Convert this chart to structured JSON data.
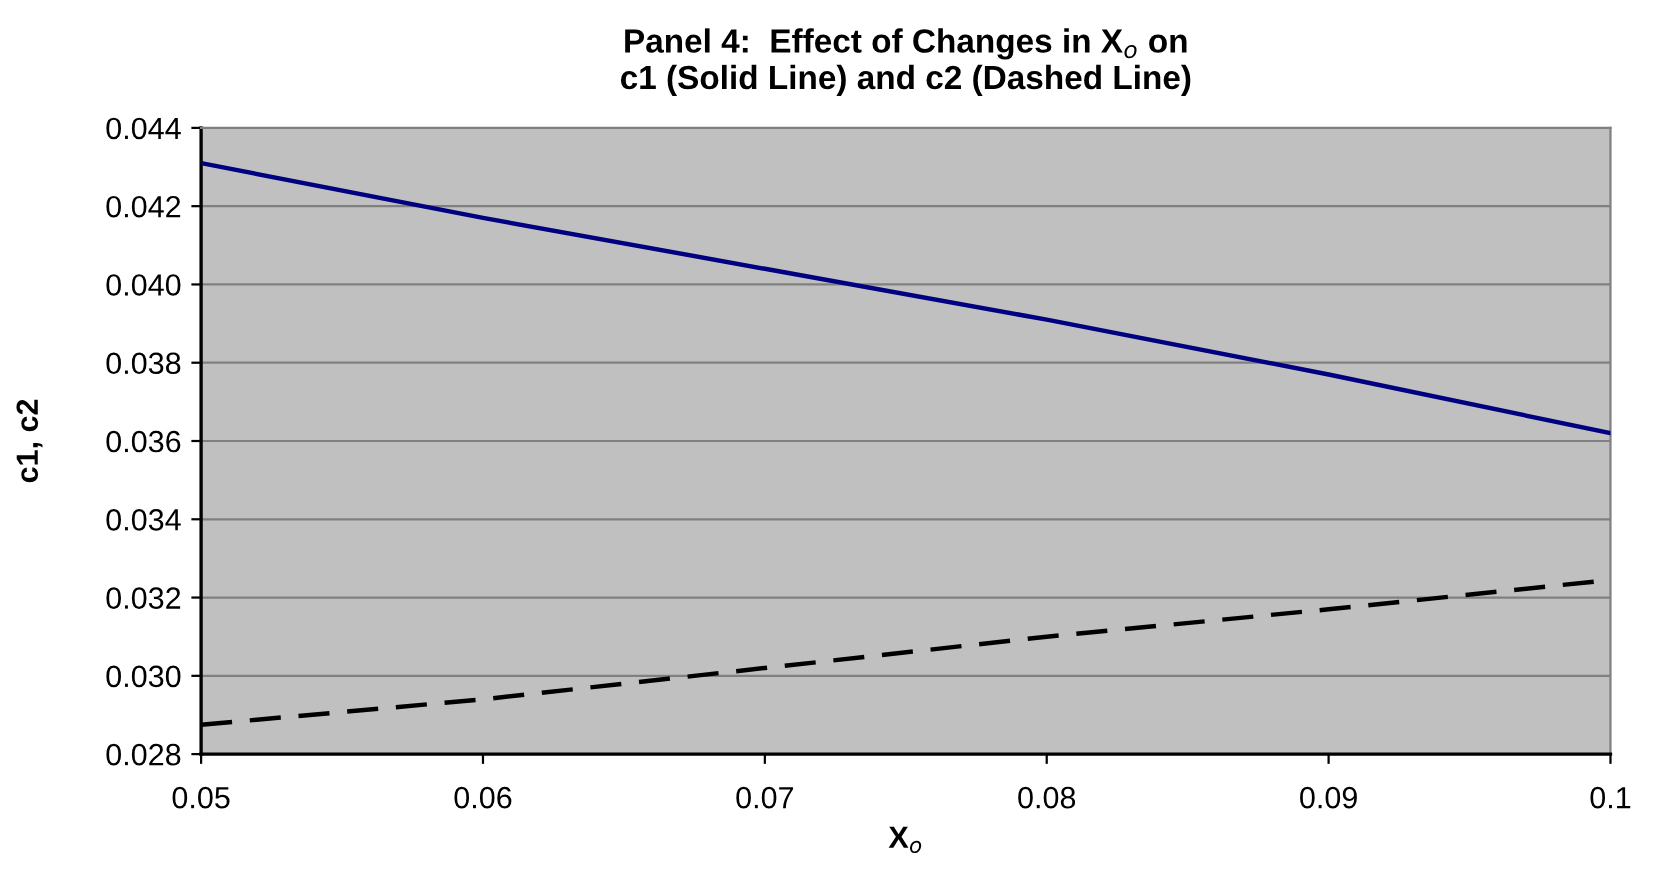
{
  "chart_data": {
    "type": "line",
    "title": "Panel 4:  Effect of Changes in X$_{o}$ on\nc1 (Solid Line) and c2 (Dashed Line)",
    "xlabel": "X$_{o}$",
    "ylabel": "c1, c2",
    "x": [
      0.05,
      0.06,
      0.07,
      0.08,
      0.09,
      0.1
    ],
    "series": [
      {
        "color": "#000080",
        "line_style": "solid",
        "values": [
          0.0431,
          0.0417,
          0.0404,
          0.0391,
          0.0377,
          0.0362
        ]
      },
      {
        "color": "#000000",
        "line_style": "dashed",
        "values": [
          0.02875,
          0.0294,
          0.0302,
          0.031,
          0.0317,
          0.03245
        ]
      }
    ],
    "xlim": [
      0.05,
      0.1
    ],
    "xticks": [
      0.05,
      0.06,
      0.07,
      0.08,
      0.09,
      0.1
    ],
    "ylim": [
      0.028,
      0.044
    ],
    "yticks": [
      {
        "value": 0.028,
        "label": "0.028"
      },
      {
        "value": 0.03,
        "label": "0.030"
      },
      {
        "value": 0.032,
        "label": "0.032"
      },
      {
        "value": 0.034,
        "label": "0.034"
      },
      {
        "value": 0.036,
        "label": "0.036"
      },
      {
        "value": 0.038,
        "label": "0.038"
      },
      {
        "value": 0.04,
        "label": "0.040"
      },
      {
        "value": 0.042,
        "label": "0.042"
      },
      {
        "value": 0.044,
        "label": "0.044"
      }
    ],
    "grid": "y",
    "marker": "none"
  }
}
